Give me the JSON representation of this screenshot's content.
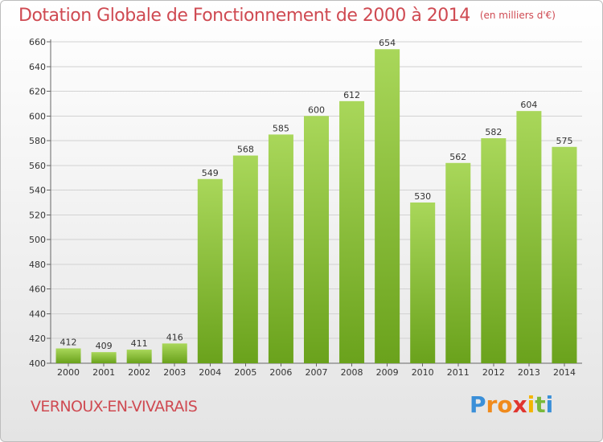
{
  "title": "Dotation Globale de Fonctionnement de 2000 à 2014",
  "unit_note": "(en milliers d'€)",
  "place": "VERNOUX-EN-VIVARAIS",
  "logo": {
    "letters": [
      "P",
      "r",
      "o",
      "x",
      "i",
      "t",
      "i"
    ],
    "colors": [
      "#3a8fd8",
      "#f08a1c",
      "#f08a1c",
      "#e0352f",
      "#f4b400",
      "#79b93a",
      "#3a8fd8"
    ]
  },
  "colors": {
    "bar_light": "#a9d75a",
    "bar_dark": "#6aa21c",
    "title": "#cf4a52",
    "grid": "#cfcfcf"
  },
  "chart_data": {
    "type": "bar",
    "title": "Dotation Globale de Fonctionnement de 2000 à 2014",
    "xlabel": "",
    "ylabel": "",
    "categories": [
      "2000",
      "2001",
      "2002",
      "2003",
      "2004",
      "2005",
      "2006",
      "2007",
      "2008",
      "2009",
      "2010",
      "2011",
      "2012",
      "2013",
      "2014"
    ],
    "values": [
      412,
      409,
      411,
      416,
      549,
      568,
      585,
      600,
      612,
      654,
      530,
      562,
      582,
      604,
      575
    ],
    "ylim": [
      400,
      660
    ],
    "yticks": [
      400,
      420,
      440,
      460,
      480,
      500,
      520,
      540,
      560,
      580,
      600,
      620,
      640,
      660
    ],
    "grid": true,
    "data_labels": true
  }
}
